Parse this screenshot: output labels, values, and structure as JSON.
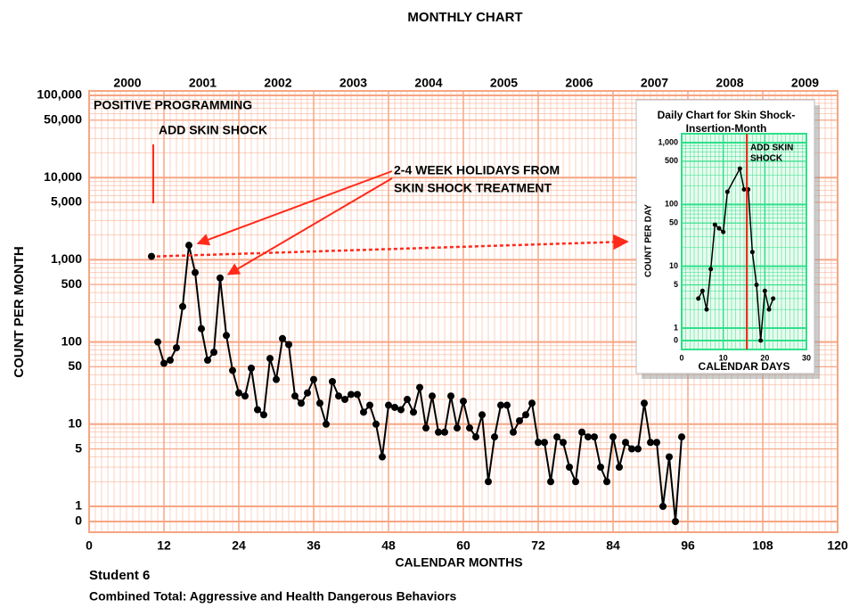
{
  "chart_data": [
    {
      "type": "line",
      "title": "MONTHLY CHART",
      "xlabel": "CALENDAR MONTHS",
      "ylabel": "COUNT PER MONTH",
      "notes": [
        "Student 6",
        "Combined Total: Aggressive and Health Dangerous Behaviors"
      ],
      "top_labels": [
        "2000",
        "2001",
        "2002",
        "2003",
        "2004",
        "2005",
        "2006",
        "2007",
        "2008",
        "2009"
      ],
      "annotations": [
        {
          "text": "POSITIVE PROGRAMMING"
        },
        {
          "text": "ADD SKIN SHOCK"
        },
        {
          "lines": [
            "2-4 WEEK HOLIDAYS FROM",
            "SKIN SHOCK TREATMENT"
          ]
        }
      ],
      "annotation_color": "#ff2a1a",
      "log_scale": true,
      "grid": true,
      "grid_color": "#f7a583",
      "xlim": [
        0,
        120
      ],
      "xticks": [
        0,
        12,
        24,
        36,
        48,
        60,
        72,
        84,
        96,
        108,
        120
      ],
      "ylim": [
        0,
        100000
      ],
      "yticks": [
        {
          "value": 100000,
          "label": "100,000"
        },
        {
          "value": 50000,
          "label": "50,000"
        },
        {
          "value": 10000,
          "label": "10,000"
        },
        {
          "value": 5000,
          "label": "5,000"
        },
        {
          "value": 1000,
          "label": "1,000"
        },
        500,
        100,
        50,
        10,
        5,
        1,
        0
      ],
      "series": [
        {
          "color": "#000000",
          "x": [
            10
          ],
          "values": [
            1100
          ]
        },
        {
          "color": "#000000",
          "x": [
            11,
            12,
            13,
            14,
            15,
            16,
            17,
            18,
            19,
            20,
            21,
            22,
            23,
            24,
            25,
            26,
            27,
            28,
            29,
            30,
            31,
            32,
            33,
            34,
            35,
            36,
            37,
            38,
            39,
            40,
            41,
            42,
            43,
            44,
            45,
            46,
            47,
            48,
            49,
            50,
            51,
            52,
            53,
            54,
            55,
            56,
            57,
            58,
            59,
            60,
            61,
            62,
            63,
            64,
            65,
            66,
            67,
            68,
            69,
            70,
            71,
            72,
            73,
            74,
            75,
            76,
            77,
            78,
            79,
            80,
            81,
            82,
            83,
            84,
            85,
            86,
            87,
            88,
            89,
            90,
            91,
            92,
            93,
            94,
            95
          ],
          "values": [
            100,
            55,
            60,
            85,
            270,
            1500,
            700,
            145,
            60,
            75,
            600,
            120,
            45,
            24,
            22,
            48,
            15,
            13,
            63,
            35,
            110,
            93,
            22,
            18,
            24,
            35,
            18,
            10,
            33,
            22,
            20,
            23,
            23,
            14,
            17,
            10,
            4,
            17,
            16,
            15,
            20,
            14,
            28,
            9,
            22,
            8,
            8,
            22,
            9,
            19,
            9,
            7,
            13,
            2,
            7,
            17,
            17,
            8,
            11,
            13,
            18,
            6,
            6,
            2,
            7,
            6,
            3,
            2,
            8,
            7,
            7,
            3,
            2,
            7,
            3,
            6,
            5,
            5,
            18,
            6,
            6,
            1,
            4,
            0,
            7
          ]
        }
      ]
    },
    {
      "type": "line",
      "title": [
        "Daily Chart for Skin Shock-",
        "Insertion-Month"
      ],
      "xlabel": "CALENDAR DAYS",
      "ylabel": "COUNT PER DAY",
      "annotations": [
        {
          "lines": [
            "ADD SKIN",
            "SHOCK"
          ]
        }
      ],
      "log_scale": true,
      "grid": true,
      "grid_color": "#2fe08a",
      "background": "#e9fbee",
      "xlim": [
        0,
        30
      ],
      "xticks": [
        0,
        10,
        20,
        30
      ],
      "ylim": [
        0,
        1000
      ],
      "yticks": [
        {
          "value": 1000,
          "label": "1,000"
        },
        500,
        100,
        50,
        10,
        5,
        1,
        0
      ],
      "series": [
        {
          "color": "#000000",
          "x": [
            4,
            5,
            6,
            7,
            8,
            9,
            10,
            11,
            14,
            15,
            16,
            17,
            18,
            19,
            20,
            21,
            22
          ],
          "values": [
            3,
            4,
            2,
            9,
            47,
            41,
            36,
            160,
            380,
            175,
            175,
            17,
            5,
            0,
            4,
            2,
            3
          ]
        }
      ]
    }
  ]
}
